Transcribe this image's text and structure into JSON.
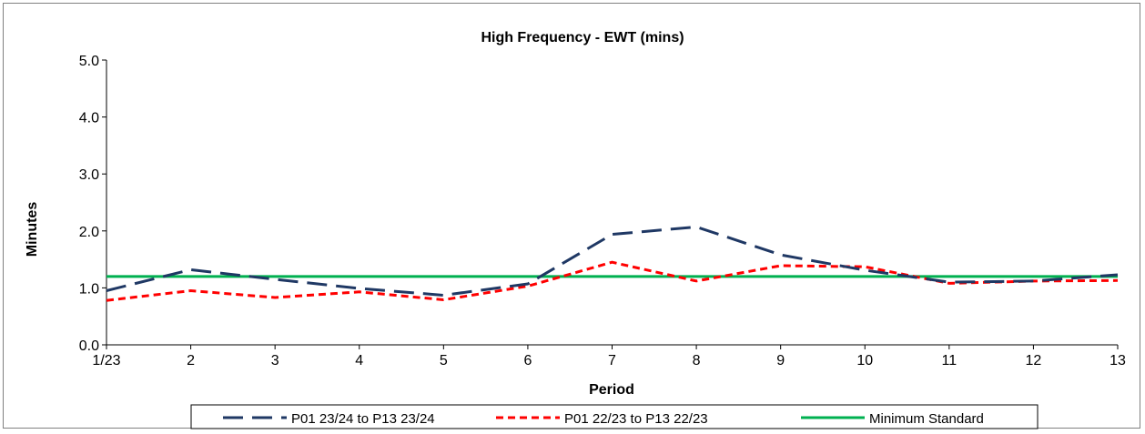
{
  "chart_data": {
    "type": "line",
    "title": "High Frequency - EWT (mins)",
    "xlabel": "Period",
    "ylabel": "Minutes",
    "categories": [
      "1/23",
      "2",
      "3",
      "4",
      "5",
      "6",
      "7",
      "8",
      "9",
      "10",
      "11",
      "12",
      "13"
    ],
    "ylim": [
      0,
      5
    ],
    "yticks": [
      "0.0",
      "1.0",
      "2.0",
      "3.0",
      "4.0",
      "5.0"
    ],
    "grid": false,
    "legend_position": "bottom",
    "series": [
      {
        "name": "P01 23/24 to P13 23/24",
        "color": "#1f3864",
        "style": "long-dash",
        "values": [
          0.95,
          1.32,
          1.15,
          0.99,
          0.87,
          1.07,
          1.94,
          2.07,
          1.58,
          1.31,
          1.1,
          1.12,
          1.23
        ]
      },
      {
        "name": "P01 22/23 to P13 22/23",
        "color": "#ff0000",
        "style": "short-dash",
        "values": [
          0.78,
          0.95,
          0.83,
          0.93,
          0.79,
          1.03,
          1.45,
          1.12,
          1.39,
          1.37,
          1.08,
          1.12,
          1.13
        ]
      },
      {
        "name": "Minimum Standard",
        "color": "#00b050",
        "style": "solid",
        "values": [
          1.2,
          1.2,
          1.2,
          1.2,
          1.2,
          1.2,
          1.2,
          1.2,
          1.2,
          1.2,
          1.2,
          1.2,
          1.2
        ]
      }
    ]
  }
}
